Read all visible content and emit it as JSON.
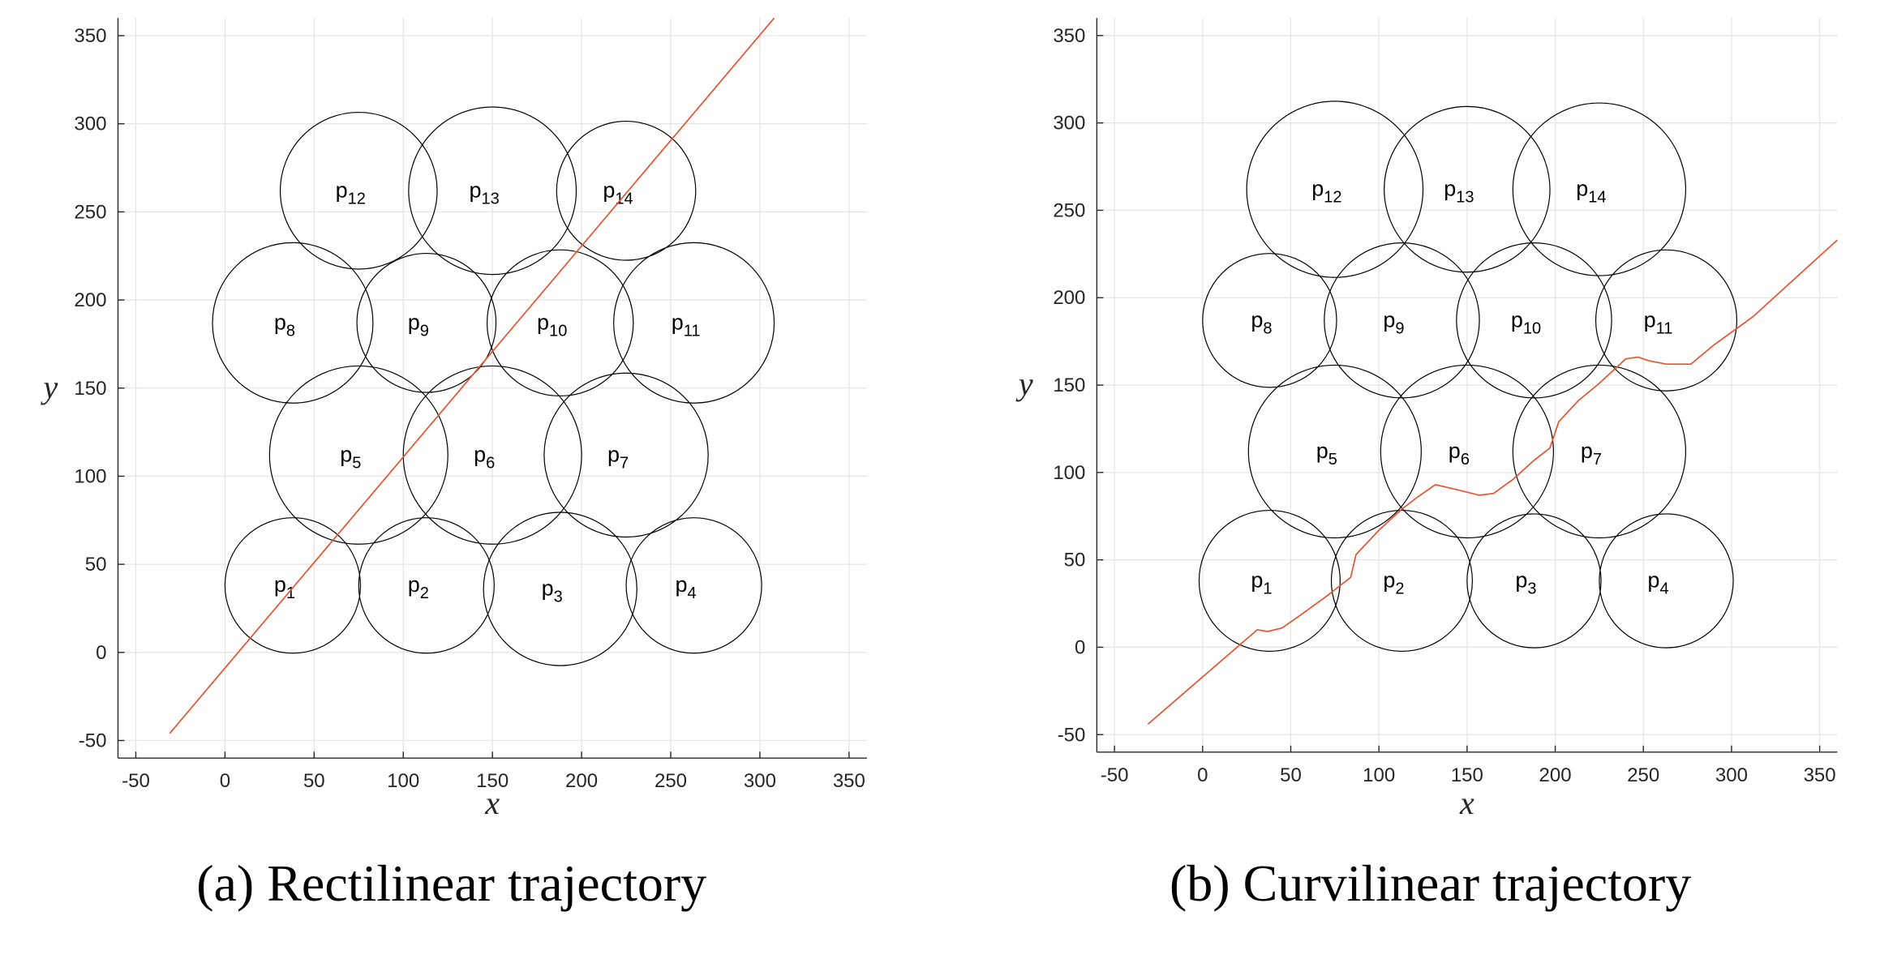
{
  "chart_data": [
    {
      "type": "line",
      "caption": "(a) Rectilinear trajectory",
      "xlabel": "x",
      "ylabel": "y",
      "xlim": [
        -60,
        360
      ],
      "ylim": [
        -60,
        360
      ],
      "xticks": [
        -50,
        0,
        50,
        100,
        150,
        200,
        250,
        300,
        350
      ],
      "yticks": [
        -50,
        0,
        50,
        100,
        150,
        200,
        250,
        300,
        350
      ],
      "grid": true,
      "circles": [
        {
          "label": "p",
          "sub": "1",
          "cx": 38,
          "cy": 38,
          "r": 38
        },
        {
          "label": "p",
          "sub": "2",
          "cx": 113,
          "cy": 38,
          "r": 38
        },
        {
          "label": "p",
          "sub": "3",
          "cx": 188,
          "cy": 36,
          "r": 43
        },
        {
          "label": "p",
          "sub": "4",
          "cx": 263,
          "cy": 38,
          "r": 38
        },
        {
          "label": "p",
          "sub": "5",
          "cx": 75,
          "cy": 112,
          "r": 50
        },
        {
          "label": "p",
          "sub": "6",
          "cx": 150,
          "cy": 112,
          "r": 50
        },
        {
          "label": "p",
          "sub": "7",
          "cx": 225,
          "cy": 112,
          "r": 46
        },
        {
          "label": "p",
          "sub": "8",
          "cx": 38,
          "cy": 187,
          "r": 45
        },
        {
          "label": "p",
          "sub": "9",
          "cx": 113,
          "cy": 187,
          "r": 39
        },
        {
          "label": "p",
          "sub": "10",
          "cx": 188,
          "cy": 187,
          "r": 41
        },
        {
          "label": "p",
          "sub": "11",
          "cx": 263,
          "cy": 187,
          "r": 45
        },
        {
          "label": "p",
          "sub": "12",
          "cx": 75,
          "cy": 262,
          "r": 44
        },
        {
          "label": "p",
          "sub": "13",
          "cx": 150,
          "cy": 262,
          "r": 47
        },
        {
          "label": "p",
          "sub": "14",
          "cx": 225,
          "cy": 262,
          "r": 39
        }
      ],
      "series": [
        {
          "points": [
            [
              -31,
              -46
            ],
            [
              308,
              360
            ]
          ]
        }
      ]
    },
    {
      "type": "line",
      "caption": "(b) Curvilinear trajectory",
      "xlabel": "x",
      "ylabel": "y",
      "xlim": [
        -60,
        360
      ],
      "ylim": [
        -60,
        360
      ],
      "xticks": [
        -50,
        0,
        50,
        100,
        150,
        200,
        250,
        300,
        350
      ],
      "yticks": [
        -50,
        0,
        50,
        100,
        150,
        200,
        250,
        300,
        350
      ],
      "grid": true,
      "circles": [
        {
          "label": "p",
          "sub": "1",
          "cx": 38,
          "cy": 38,
          "r": 40
        },
        {
          "label": "p",
          "sub": "2",
          "cx": 113,
          "cy": 38,
          "r": 40
        },
        {
          "label": "p",
          "sub": "3",
          "cx": 188,
          "cy": 38,
          "r": 38
        },
        {
          "label": "p",
          "sub": "4",
          "cx": 263,
          "cy": 38,
          "r": 38
        },
        {
          "label": "p",
          "sub": "5",
          "cx": 75,
          "cy": 112,
          "r": 49
        },
        {
          "label": "p",
          "sub": "6",
          "cx": 150,
          "cy": 112,
          "r": 49
        },
        {
          "label": "p",
          "sub": "7",
          "cx": 225,
          "cy": 112,
          "r": 49
        },
        {
          "label": "p",
          "sub": "8",
          "cx": 38,
          "cy": 187,
          "r": 38
        },
        {
          "label": "p",
          "sub": "9",
          "cx": 113,
          "cy": 187,
          "r": 44
        },
        {
          "label": "p",
          "sub": "10",
          "cx": 188,
          "cy": 187,
          "r": 44
        },
        {
          "label": "p",
          "sub": "11",
          "cx": 263,
          "cy": 187,
          "r": 40
        },
        {
          "label": "p",
          "sub": "12",
          "cx": 75,
          "cy": 262,
          "r": 50
        },
        {
          "label": "p",
          "sub": "13",
          "cx": 150,
          "cy": 262,
          "r": 47
        },
        {
          "label": "p",
          "sub": "14",
          "cx": 225,
          "cy": 262,
          "r": 49
        }
      ],
      "series": [
        {
          "points": [
            [
              -31,
              -44
            ],
            [
              31,
              10
            ],
            [
              37,
              9
            ],
            [
              45,
              11
            ],
            [
              55,
              18
            ],
            [
              70,
              29
            ],
            [
              84,
              40
            ],
            [
              87,
              53
            ],
            [
              100,
              67
            ],
            [
              113,
              79
            ],
            [
              122,
              86
            ],
            [
              132,
              93
            ],
            [
              145,
              90
            ],
            [
              157,
              87
            ],
            [
              165,
              88
            ],
            [
              176,
              96
            ],
            [
              188,
              107
            ],
            [
              197,
              114
            ],
            [
              202,
              129
            ],
            [
              213,
              141
            ],
            [
              225,
              151
            ],
            [
              240,
              165
            ],
            [
              247,
              166
            ],
            [
              253,
              164
            ],
            [
              263,
              162
            ],
            [
              277,
              162
            ],
            [
              290,
              173
            ],
            [
              312,
              189
            ],
            [
              360,
              233
            ]
          ]
        }
      ]
    }
  ],
  "colors": {
    "trajectory": "#e8532f",
    "circle": "#000000",
    "grid": "#e6e6e6",
    "axis": "#262626"
  }
}
